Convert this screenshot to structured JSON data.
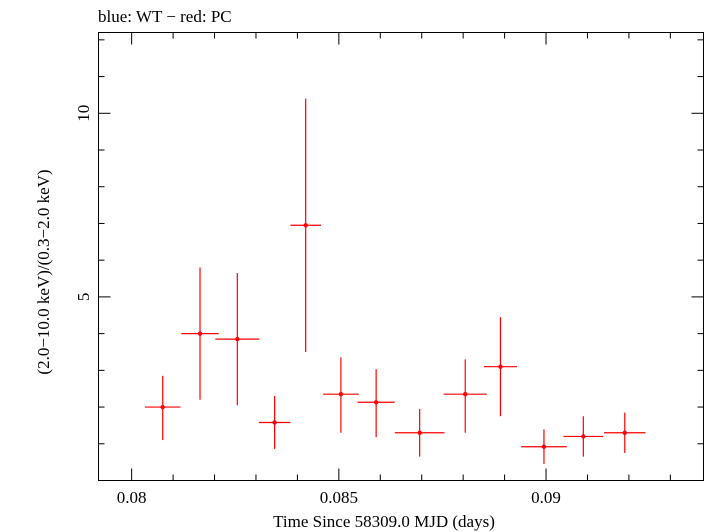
{
  "chart_data": {
    "type": "scatter",
    "title": "blue: WT − red: PC",
    "xlabel": "Time Since 58309.0 MJD (days)",
    "ylabel": "(2.0−10.0 keV)/(0.3−2.0 keV)",
    "xlim": [
      0.0792,
      0.0938
    ],
    "ylim": [
      0.0,
      12.2
    ],
    "x_ticks": [
      {
        "value": 0.08,
        "label": "0.08"
      },
      {
        "value": 0.085,
        "label": "0.085"
      },
      {
        "value": 0.09,
        "label": "0.09"
      }
    ],
    "y_ticks": [
      {
        "value": 5,
        "label": "5"
      },
      {
        "value": 10,
        "label": "10"
      }
    ],
    "grid": false,
    "series": [
      {
        "name": "PC",
        "color": "#ff0000",
        "points": [
          {
            "x": 0.08075,
            "xerr": 0.00043,
            "y": 2.0,
            "yerr_low": 0.9,
            "yerr_high": 0.85
          },
          {
            "x": 0.08165,
            "xerr": 0.00045,
            "y": 4.0,
            "yerr_low": 1.8,
            "yerr_high": 1.8
          },
          {
            "x": 0.08255,
            "xerr": 0.00053,
            "y": 3.85,
            "yerr_low": 1.8,
            "yerr_high": 1.8
          },
          {
            "x": 0.08345,
            "xerr": 0.00038,
            "y": 1.58,
            "yerr_low": 0.72,
            "yerr_high": 0.72
          },
          {
            "x": 0.0842,
            "xerr": 0.00037,
            "y": 6.95,
            "yerr_low": 3.45,
            "yerr_high": 3.45
          },
          {
            "x": 0.08505,
            "xerr": 0.00043,
            "y": 2.35,
            "yerr_low": 1.05,
            "yerr_high": 1.0
          },
          {
            "x": 0.0859,
            "xerr": 0.00045,
            "y": 2.13,
            "yerr_low": 0.95,
            "yerr_high": 0.9
          },
          {
            "x": 0.08695,
            "xerr": 0.0006,
            "y": 1.3,
            "yerr_low": 0.65,
            "yerr_high": 0.65
          },
          {
            "x": 0.08805,
            "xerr": 0.00052,
            "y": 2.35,
            "yerr_low": 1.05,
            "yerr_high": 0.95
          },
          {
            "x": 0.0889,
            "xerr": 0.0004,
            "y": 3.1,
            "yerr_low": 1.35,
            "yerr_high": 1.35
          },
          {
            "x": 0.08995,
            "xerr": 0.00055,
            "y": 0.92,
            "yerr_low": 0.47,
            "yerr_high": 0.47
          },
          {
            "x": 0.0909,
            "xerr": 0.00048,
            "y": 1.2,
            "yerr_low": 0.55,
            "yerr_high": 0.55
          },
          {
            "x": 0.0919,
            "xerr": 0.0005,
            "y": 1.3,
            "yerr_low": 0.55,
            "yerr_high": 0.55
          }
        ]
      }
    ]
  }
}
